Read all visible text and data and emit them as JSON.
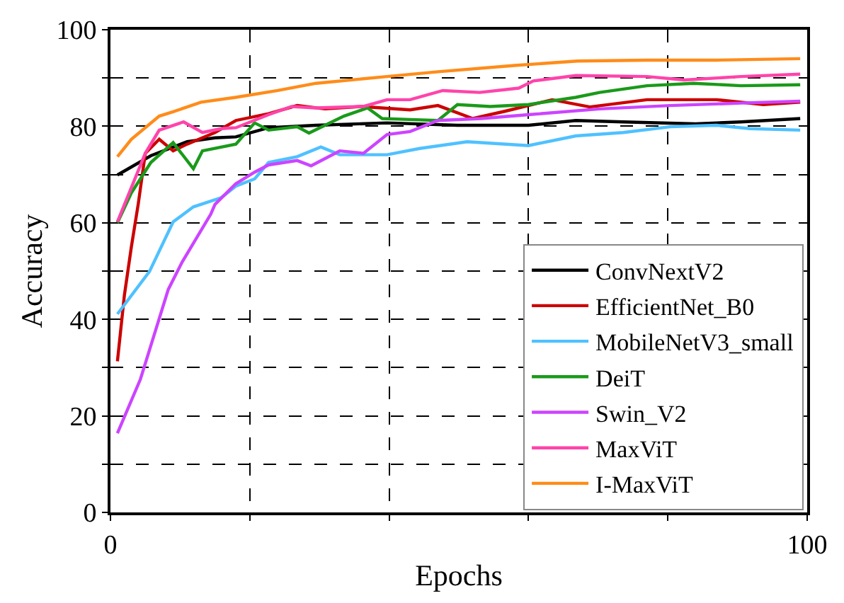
{
  "chart_data": {
    "type": "line",
    "xlabel": "Epochs",
    "ylabel": "Accuracy",
    "xlim": [
      0,
      100
    ],
    "xticks": [
      0,
      {
        "value": 20,
        "label": null
      },
      {
        "value": 40,
        "label": null
      },
      {
        "value": 60,
        "label": null
      },
      {
        "value": 80,
        "label": null
      },
      100
    ],
    "ylim": [
      0,
      100
    ],
    "yticks": [
      0,
      {
        "value": 10,
        "label": null
      },
      20,
      {
        "value": 30,
        "label": null
      },
      40,
      {
        "value": 50,
        "label": null
      },
      60,
      {
        "value": 70,
        "label": null
      },
      80,
      {
        "value": 90,
        "label": null
      },
      100
    ],
    "grid": true,
    "legend": "bottom right",
    "line_style": "solid",
    "marker": "none",
    "series": [
      {
        "name": "ConvNextV2",
        "color": "#000000",
        "x": [
          1,
          5.8,
          11,
          15,
          18,
          22.7,
          29.5,
          39.7,
          49.8,
          60,
          66.8,
          73.6,
          84,
          90.5,
          99
        ],
        "values": [
          69.9,
          73.9,
          76.8,
          77.6,
          77.8,
          79.7,
          80.2,
          80.7,
          80.2,
          80.2,
          81.2,
          80.9,
          80.5,
          80.9,
          81.6
        ]
      },
      {
        "name": "EfficientNet_B0",
        "color": "#cc0000",
        "x": [
          1,
          2,
          3,
          4,
          5,
          7,
          9,
          11,
          15,
          18,
          22.7,
          26.8,
          30.8,
          36,
          43,
          47,
          52,
          56.6,
          63.4,
          68.8,
          77,
          87,
          93.7,
          99
        ],
        "values": [
          31.3,
          45,
          55,
          64,
          74.4,
          77.3,
          74.9,
          76.3,
          78.7,
          81.2,
          82.6,
          84.3,
          83.6,
          84.1,
          83.4,
          84.3,
          81.6,
          83.1,
          85.5,
          84,
          85.5,
          85.5,
          84.5,
          85
        ]
      },
      {
        "name": "MobileNetV3_small",
        "color": "#4fc1ff",
        "x": [
          1,
          5.6,
          9,
          11.9,
          15.9,
          18,
          20.7,
          22.7,
          26.8,
          30.2,
          32.9,
          39.7,
          44.4,
          51.2,
          60,
          66.8,
          73.6,
          80.3,
          87,
          91.8,
          99
        ],
        "values": [
          41.1,
          49.9,
          60.2,
          63.3,
          65.2,
          67.6,
          69.1,
          72.5,
          73.7,
          75.7,
          74.1,
          74.1,
          75.4,
          76.8,
          76,
          78,
          78.7,
          79.9,
          80.2,
          79.5,
          79.2
        ]
      },
      {
        "name": "DeiT",
        "color": "#1a9a1a",
        "x": [
          1,
          3,
          5.8,
          9,
          11.9,
          13.2,
          18,
          20.7,
          22.7,
          26.8,
          28.5,
          33.5,
          36.9,
          39,
          43,
          47,
          49.8,
          54.5,
          60,
          66.8,
          70.2,
          77,
          83.7,
          90.5,
          99
        ],
        "values": [
          60,
          66.2,
          72.5,
          76.6,
          71.2,
          74.9,
          76.3,
          80.7,
          79.2,
          79.9,
          78.6,
          82.1,
          83.8,
          81.6,
          81.4,
          81.2,
          84.5,
          84.1,
          84.5,
          86,
          87,
          88.4,
          88.9,
          88.4,
          88.6
        ]
      },
      {
        "name": "Swin_V2",
        "color": "#cc44ff",
        "x": [
          1,
          4.3,
          8.3,
          10.3,
          14.4,
          15,
          18,
          20.7,
          22.7,
          26.8,
          28.8,
          32.9,
          36.3,
          39.7,
          43,
          47,
          53.2,
          60,
          70.2,
          80.3,
          90.5,
          99
        ],
        "values": [
          16.4,
          27.6,
          46.2,
          51.9,
          61.8,
          63.8,
          68.1,
          70.5,
          72,
          72.9,
          71.8,
          74.9,
          74.4,
          78.3,
          78.9,
          81.2,
          81.6,
          82.4,
          83.6,
          84.3,
          84.8,
          85.2
        ]
      },
      {
        "name": "MaxViT",
        "color": "#ff44aa",
        "x": [
          1,
          5,
          7,
          10.5,
          13.2,
          15.9,
          18,
          22.7,
          26,
          29.5,
          36.3,
          39.7,
          43,
          47.7,
          53,
          58.6,
          60.7,
          66.8,
          77,
          82.4,
          90.5,
          99
        ],
        "values": [
          60.2,
          74.4,
          79.2,
          80.9,
          78.7,
          79.5,
          79.7,
          82.4,
          84.1,
          83.8,
          84.1,
          85.5,
          85.5,
          87.4,
          87,
          87.9,
          89.4,
          90.5,
          90.3,
          89.6,
          90.3,
          90.8
        ]
      },
      {
        "name": "I-MaxViT",
        "color": "#ff8c1a",
        "x": [
          1,
          3,
          7,
          9,
          13,
          18,
          24,
          29.5,
          39.7,
          47,
          58,
          67,
          77,
          87,
          99
        ],
        "values": [
          73.7,
          77.3,
          82.1,
          83,
          85,
          86,
          87.4,
          88.9,
          90.3,
          91.3,
          92.6,
          93.5,
          93.7,
          93.7,
          94
        ]
      }
    ]
  }
}
